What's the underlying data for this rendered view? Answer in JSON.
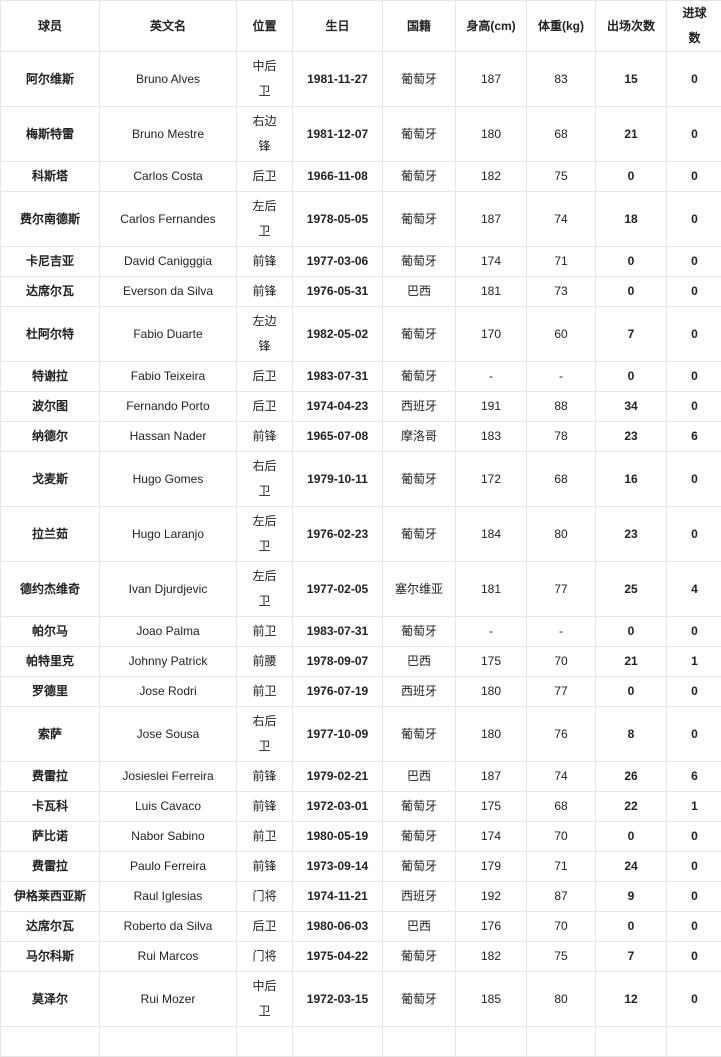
{
  "headers": [
    "球员",
    "英文名",
    "位置",
    "生日",
    "国籍",
    "身高(cm)",
    "体重(kg)",
    "出场次数",
    "进球数"
  ],
  "rows": [
    [
      "阿尔维斯",
      "Bruno Alves",
      "中后卫",
      "1981-11-27",
      "葡萄牙",
      "187",
      "83",
      "15",
      "0"
    ],
    [
      "梅斯特雷",
      "Bruno Mestre",
      "右边锋",
      "1981-12-07",
      "葡萄牙",
      "180",
      "68",
      "21",
      "0"
    ],
    [
      "科斯塔",
      "Carlos Costa",
      "后卫",
      "1966-11-08",
      "葡萄牙",
      "182",
      "75",
      "0",
      "0"
    ],
    [
      "费尔南德斯",
      "Carlos Fernandes",
      "左后卫",
      "1978-05-05",
      "葡萄牙",
      "187",
      "74",
      "18",
      "0"
    ],
    [
      "卡尼吉亚",
      "David Canigggia",
      "前锋",
      "1977-03-06",
      "葡萄牙",
      "174",
      "71",
      "0",
      "0"
    ],
    [
      "达席尔瓦",
      "Everson da Silva",
      "前锋",
      "1976-05-31",
      "巴西",
      "181",
      "73",
      "0",
      "0"
    ],
    [
      "杜阿尔特",
      "Fabio Duarte",
      "左边锋",
      "1982-05-02",
      "葡萄牙",
      "170",
      "60",
      "7",
      "0"
    ],
    [
      "特谢拉",
      "Fabio Teixeira",
      "后卫",
      "1983-07-31",
      "葡萄牙",
      "-",
      "-",
      "0",
      "0"
    ],
    [
      "波尔图",
      "Fernando Porto",
      "后卫",
      "1974-04-23",
      "西班牙",
      "191",
      "88",
      "34",
      "0"
    ],
    [
      "纳德尔",
      "Hassan Nader",
      "前锋",
      "1965-07-08",
      "摩洛哥",
      "183",
      "78",
      "23",
      "6"
    ],
    [
      "戈麦斯",
      "Hugo Gomes",
      "右后卫",
      "1979-10-11",
      "葡萄牙",
      "172",
      "68",
      "16",
      "0"
    ],
    [
      "拉兰茹",
      "Hugo Laranjo",
      "左后卫",
      "1976-02-23",
      "葡萄牙",
      "184",
      "80",
      "23",
      "0"
    ],
    [
      "德约杰维奇",
      "Ivan Djurdjevic",
      "左后卫",
      "1977-02-05",
      "塞尔维亚",
      "181",
      "77",
      "25",
      "4"
    ],
    [
      "帕尔马",
      "Joao Palma",
      "前卫",
      "1983-07-31",
      "葡萄牙",
      "-",
      "-",
      "0",
      "0"
    ],
    [
      "帕特里克",
      "Johnny Patrick",
      "前腰",
      "1978-09-07",
      "巴西",
      "175",
      "70",
      "21",
      "1"
    ],
    [
      "罗德里",
      "Jose Rodri",
      "前卫",
      "1976-07-19",
      "西班牙",
      "180",
      "77",
      "0",
      "0"
    ],
    [
      "索萨",
      "Jose Sousa",
      "右后卫",
      "1977-10-09",
      "葡萄牙",
      "180",
      "76",
      "8",
      "0"
    ],
    [
      "费雷拉",
      "Josieslei Ferreira",
      "前锋",
      "1979-02-21",
      "巴西",
      "187",
      "74",
      "26",
      "6"
    ],
    [
      "卡瓦科",
      "Luis Cavaco",
      "前锋",
      "1972-03-01",
      "葡萄牙",
      "175",
      "68",
      "22",
      "1"
    ],
    [
      "萨比诺",
      "Nabor Sabino",
      "前卫",
      "1980-05-19",
      "葡萄牙",
      "174",
      "70",
      "0",
      "0"
    ],
    [
      "费雷拉",
      "Paulo Ferreira",
      "前锋",
      "1973-09-14",
      "葡萄牙",
      "179",
      "71",
      "24",
      "0"
    ],
    [
      "伊格莱西亚斯",
      "Raul Iglesias",
      "门将",
      "1974-11-21",
      "西班牙",
      "192",
      "87",
      "9",
      "0"
    ],
    [
      "达席尔瓦",
      "Roberto da Silva",
      "后卫",
      "1980-06-03",
      "巴西",
      "176",
      "70",
      "0",
      "0"
    ],
    [
      "马尔科斯",
      "Rui Marcos",
      "门将",
      "1975-04-22",
      "葡萄牙",
      "182",
      "75",
      "7",
      "0"
    ],
    [
      "莫泽尔",
      "Rui Mozer",
      "中后卫",
      "1972-03-15",
      "葡萄牙",
      "185",
      "80",
      "12",
      "0"
    ]
  ]
}
